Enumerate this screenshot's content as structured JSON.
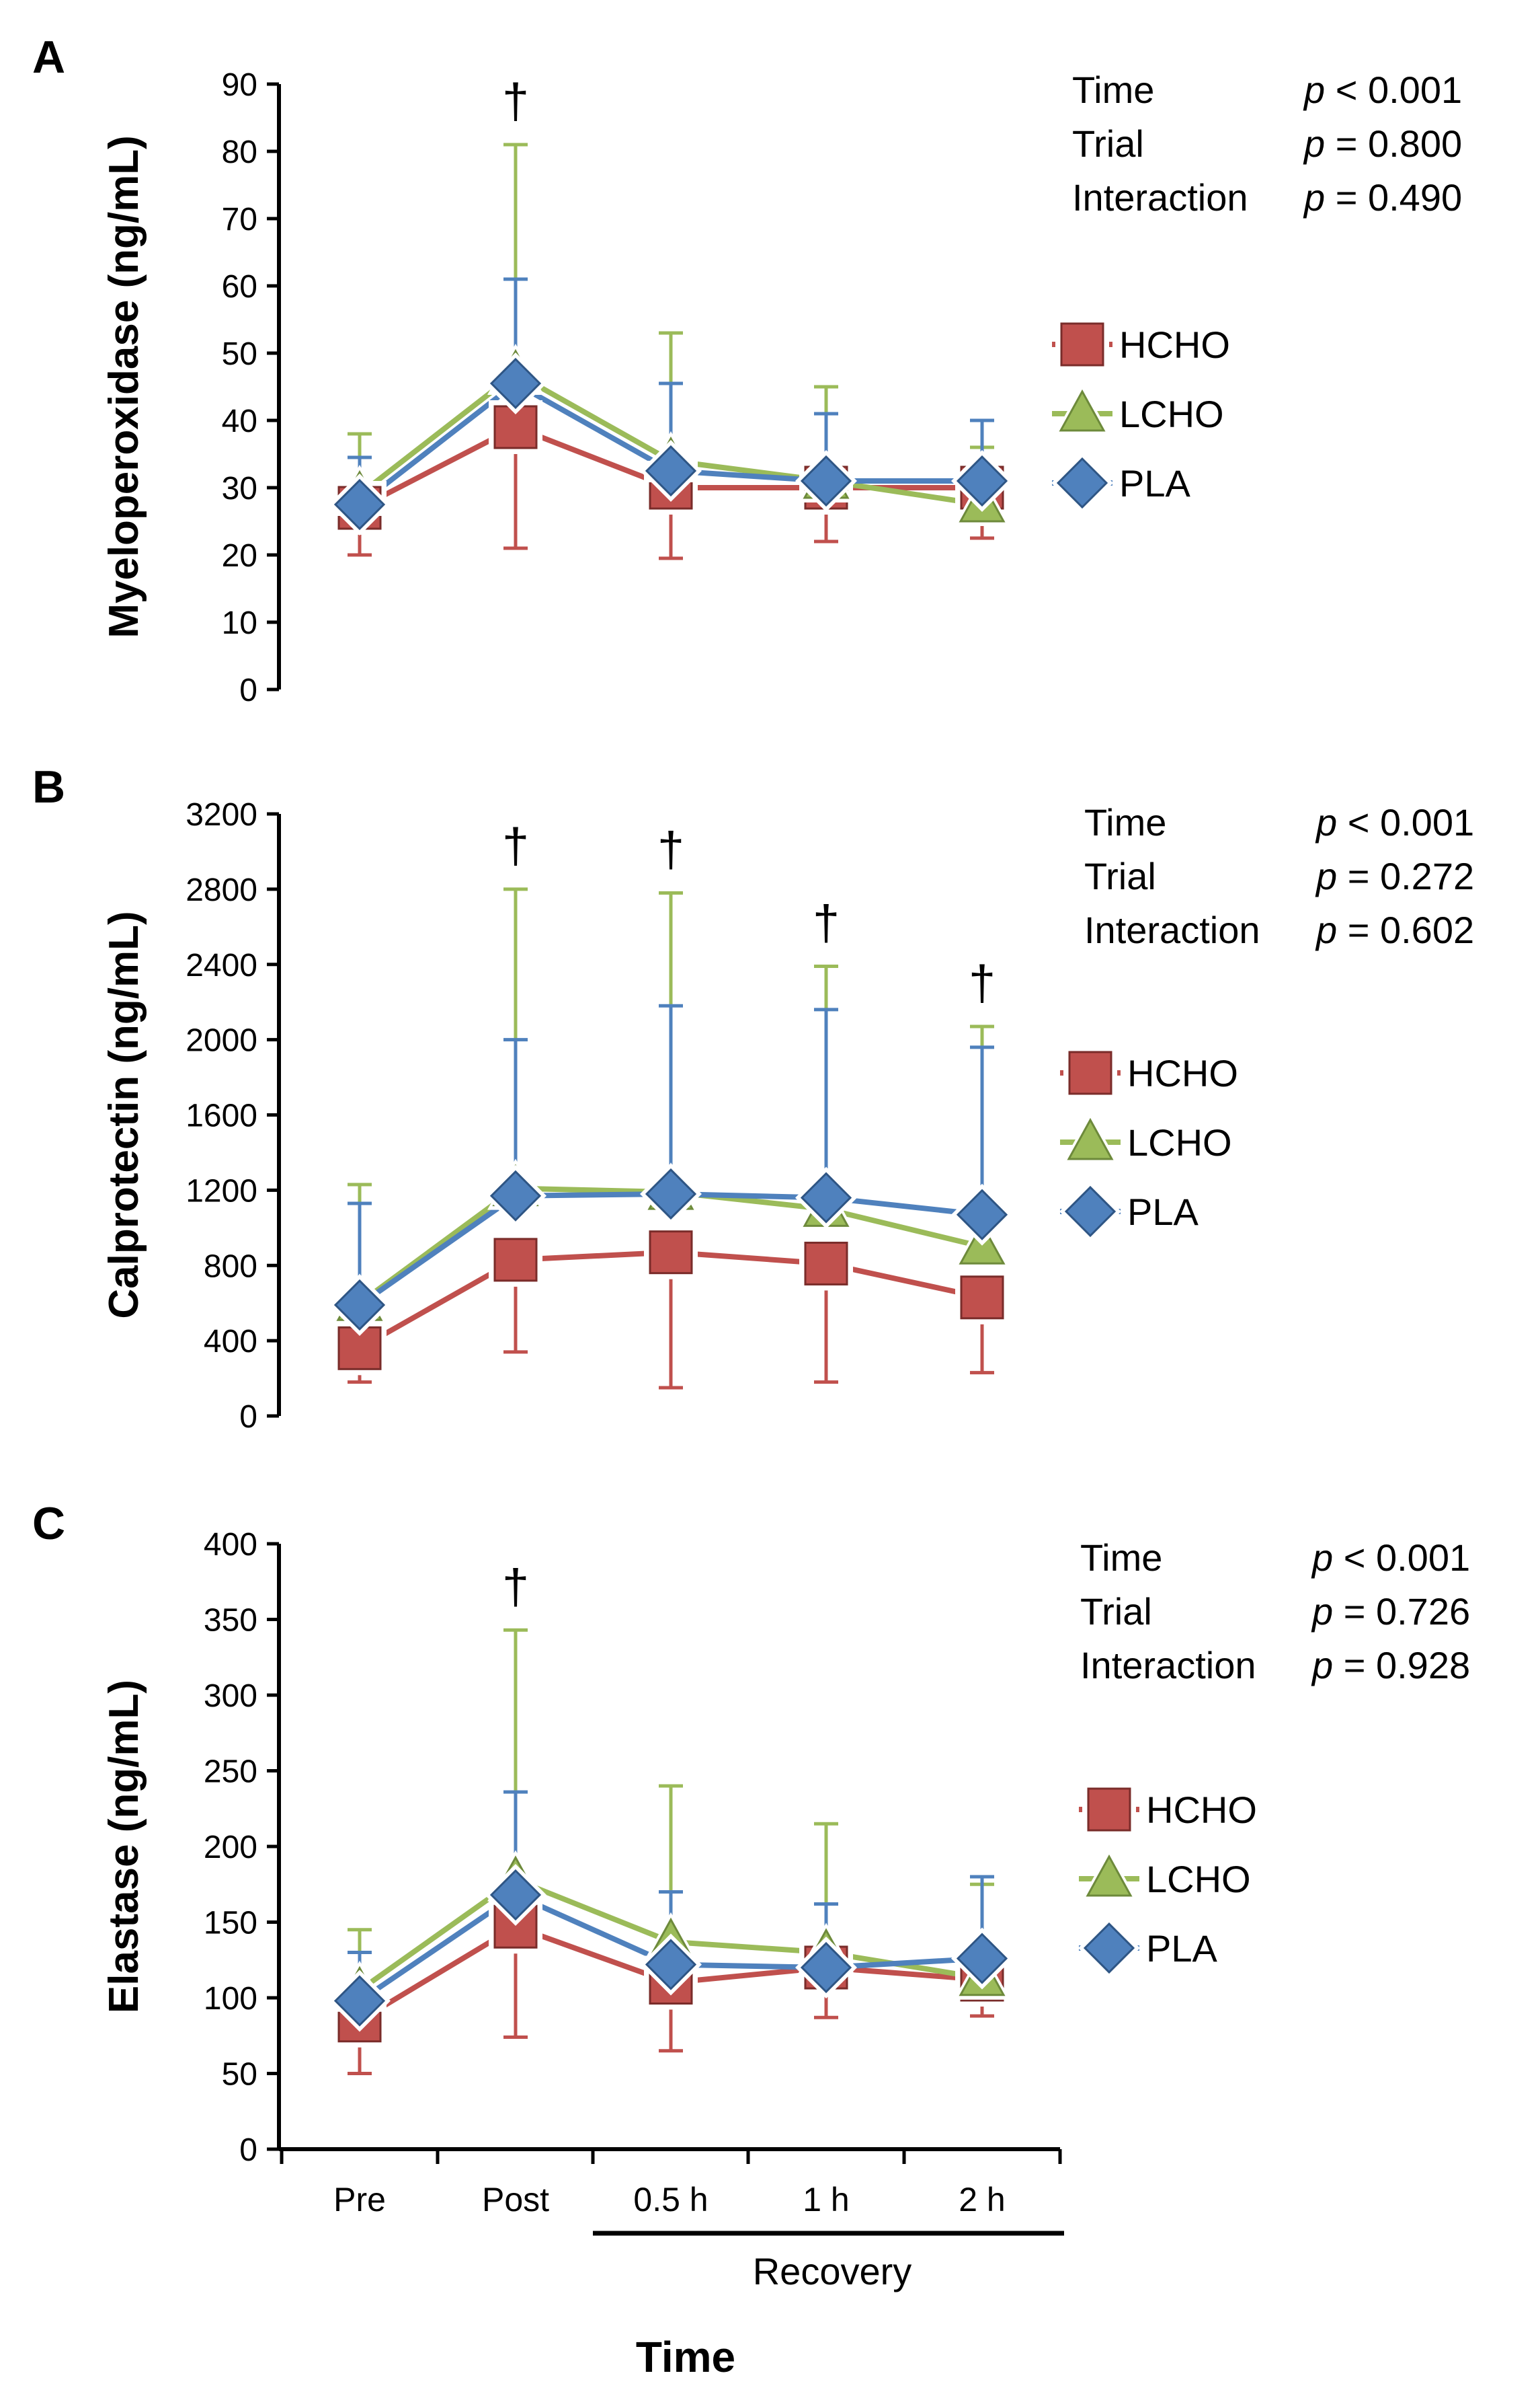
{
  "colors": {
    "HCHO": "#c0504d",
    "LCHO": "#9bbb59",
    "PLA": "#4f81bd",
    "axis": "#000000"
  },
  "dagger": "†",
  "xaxis": {
    "categories": [
      "Pre",
      "Post",
      "0.5 h",
      "1 h",
      "2 h"
    ],
    "recovery_label": "Recovery",
    "title": "Time"
  },
  "chart_data": [
    {
      "panel": "A",
      "type": "line",
      "ylabel": "Myeloperoxidase (ng/mL)",
      "ylim": [
        0,
        90
      ],
      "yticks": [
        0,
        10,
        20,
        30,
        40,
        50,
        60,
        70,
        80,
        90
      ],
      "categories": [
        "Pre",
        "Post",
        "0.5 h",
        "1 h",
        "2 h"
      ],
      "series": [
        {
          "name": "HCHO",
          "values": [
            27,
            39,
            30,
            30,
            30
          ],
          "err_low": [
            20,
            21,
            19.5,
            22,
            22.5
          ],
          "err_high": [
            null,
            null,
            null,
            null,
            null
          ]
        },
        {
          "name": "LCHO",
          "values": [
            29,
            47,
            34,
            31,
            27.5
          ],
          "err_low": [
            null,
            null,
            null,
            null,
            null
          ],
          "err_high": [
            38,
            81,
            53,
            45,
            36
          ]
        },
        {
          "name": "PLA",
          "values": [
            27.5,
            45.5,
            32.5,
            31,
            31
          ],
          "err_low": [
            null,
            null,
            null,
            null,
            null
          ],
          "err_high": [
            34.5,
            61,
            45.5,
            41,
            40
          ]
        }
      ],
      "daggers": [
        false,
        true,
        false,
        false,
        false
      ],
      "stats": [
        {
          "label": "Time",
          "p": "p",
          "value": "< 0.001"
        },
        {
          "label": "Trial",
          "p": "p",
          "value": "= 0.800"
        },
        {
          "label": "Interaction",
          "p": "p",
          "value": "= 0.490"
        }
      ],
      "legend": [
        "HCHO",
        "LCHO",
        "PLA"
      ]
    },
    {
      "panel": "B",
      "type": "line",
      "ylabel": "Calprotectin (ng/mL)",
      "ylim": [
        0,
        3200
      ],
      "yticks": [
        0,
        400,
        800,
        1200,
        1600,
        2000,
        2400,
        2800,
        3200
      ],
      "categories": [
        "Pre",
        "Post",
        "0.5 h",
        "1 h",
        "2 h"
      ],
      "series": [
        {
          "name": "HCHO",
          "values": [
            360,
            830,
            870,
            810,
            630
          ],
          "err_low": [
            180,
            340,
            150,
            180,
            230
          ],
          "err_high": [
            null,
            null,
            null,
            null,
            null
          ]
        },
        {
          "name": "LCHO",
          "values": [
            600,
            1210,
            1190,
            1100,
            900
          ],
          "err_low": [
            null,
            null,
            null,
            null,
            null
          ],
          "err_high": [
            1230,
            2800,
            2780,
            2390,
            2070
          ]
        },
        {
          "name": "PLA",
          "values": [
            590,
            1170,
            1180,
            1160,
            1070
          ],
          "err_low": [
            null,
            null,
            null,
            null,
            null
          ],
          "err_high": [
            1130,
            2000,
            2180,
            2160,
            1960
          ]
        }
      ],
      "daggers": [
        false,
        true,
        true,
        true,
        true
      ],
      "stats": [
        {
          "label": "Time",
          "p": "p",
          "value": "< 0.001"
        },
        {
          "label": "Trial",
          "p": "p",
          "value": "= 0.272"
        },
        {
          "label": "Interaction",
          "p": "p",
          "value": "= 0.602"
        }
      ],
      "legend": [
        "HCHO",
        "LCHO",
        "PLA"
      ]
    },
    {
      "panel": "C",
      "type": "line",
      "ylabel": "Elastase (ng/mL)",
      "ylim": [
        0,
        400
      ],
      "yticks": [
        0,
        50,
        100,
        150,
        200,
        250,
        300,
        350,
        400
      ],
      "categories": [
        "Pre",
        "Post",
        "0.5 h",
        "1 h",
        "2 h"
      ],
      "series": [
        {
          "name": "HCHO",
          "values": [
            85,
            147,
            110,
            120,
            112
          ],
          "err_low": [
            50,
            74,
            65,
            87,
            88
          ],
          "err_high": [
            null,
            null,
            null,
            null,
            null
          ]
        },
        {
          "name": "LCHO",
          "values": [
            105,
            178,
            137,
            130,
            113
          ],
          "err_low": [
            null,
            null,
            null,
            null,
            null
          ],
          "err_high": [
            145,
            343,
            240,
            215,
            175
          ]
        },
        {
          "name": "PLA",
          "values": [
            98,
            168,
            122,
            120,
            126
          ],
          "err_low": [
            null,
            null,
            null,
            null,
            null
          ],
          "err_high": [
            130,
            236,
            170,
            162,
            180
          ]
        }
      ],
      "daggers": [
        false,
        true,
        false,
        false,
        false
      ],
      "stats": [
        {
          "label": "Time",
          "p": "p",
          "value": "< 0.001"
        },
        {
          "label": "Trial",
          "p": "p",
          "value": "= 0.726"
        },
        {
          "label": "Interaction",
          "p": "p",
          "value": "= 0.928"
        }
      ],
      "legend": [
        "HCHO",
        "LCHO",
        "PLA"
      ]
    }
  ]
}
